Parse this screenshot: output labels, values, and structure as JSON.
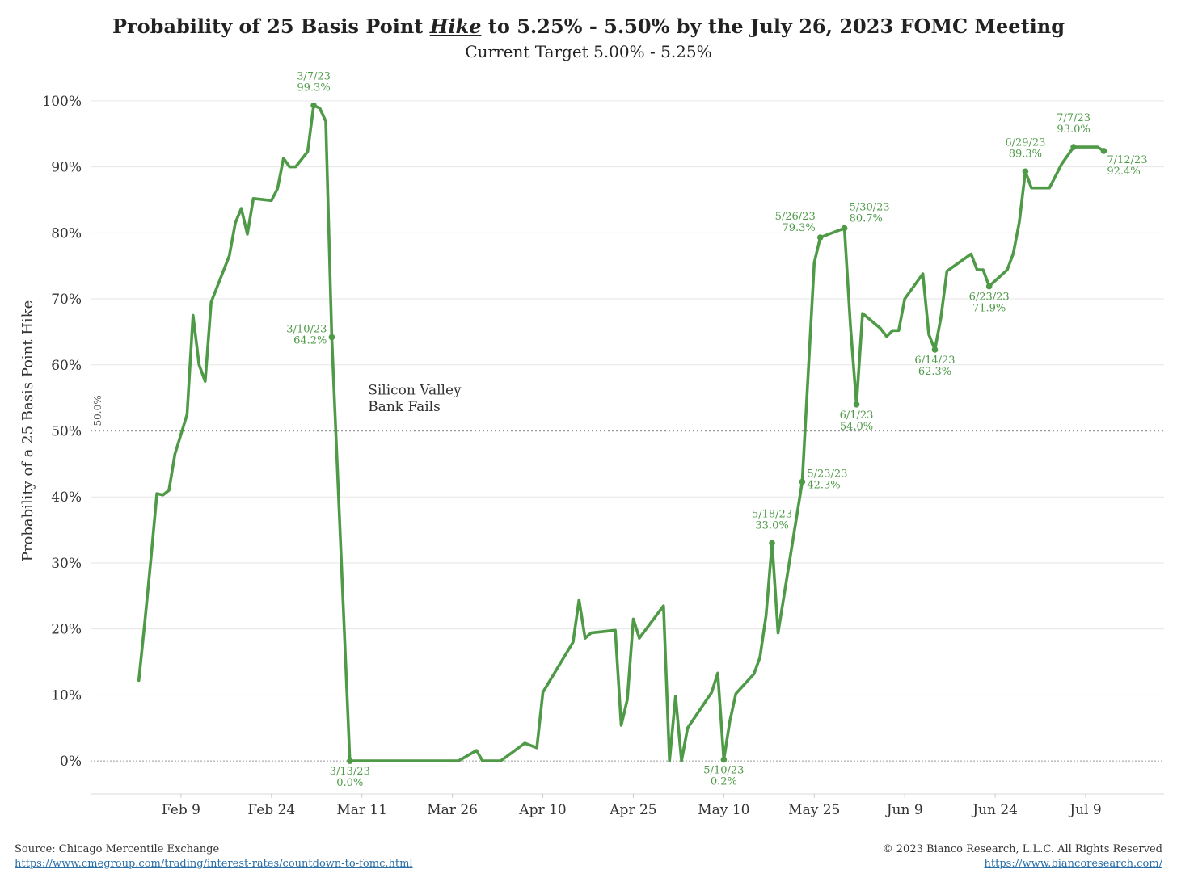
{
  "title": {
    "prefix": "Probability of 25 Basis Point ",
    "emphasis": "Hike",
    "suffix": " to 5.25% - 5.50% by the July 26, 2023 FOMC Meeting"
  },
  "subtitle": "Current Target 5.00% - 5.25%",
  "footer": {
    "source": "Source: Chicago Mercentile Exchange",
    "source_url": "https://www.cmegroup.com/trading/interest-rates/countdown-to-fomc.html",
    "copyright": "© 2023 Bianco Research, L.L.C. All Rights Reserved",
    "site_url": "https://www.biancoresearch.com/"
  },
  "colors": {
    "line": "#4e9a47",
    "grid": "#e6e6e6",
    "reference": "#999999",
    "text": "#333333"
  },
  "chart_data": {
    "type": "line",
    "title": "Probability of 25 Basis Point Hike to 5.25% - 5.50% by the July 26, 2023 FOMC Meeting",
    "subtitle": "Current Target 5.00% - 5.25%",
    "xlabel": "",
    "ylabel": "Probability of a 25 Basis Point Hike",
    "x_type": "date",
    "xlim": [
      "2023-01-25",
      "2023-07-22"
    ],
    "ylim": [
      -5,
      105
    ],
    "y_ticks": [
      0,
      10,
      20,
      30,
      40,
      50,
      60,
      70,
      80,
      90,
      100
    ],
    "y_tick_labels": [
      "0%",
      "10%",
      "20%",
      "30%",
      "40%",
      "50%",
      "60%",
      "70%",
      "80%",
      "90%",
      "100%"
    ],
    "x_ticks": [
      "2023-02-09",
      "2023-02-24",
      "2023-03-11",
      "2023-03-26",
      "2023-04-10",
      "2023-04-25",
      "2023-05-10",
      "2023-05-25",
      "2023-06-09",
      "2023-06-24",
      "2023-07-09"
    ],
    "x_tick_labels": [
      "Feb 9",
      "Feb 24",
      "Mar 11",
      "Mar 26",
      "Apr 10",
      "Apr 25",
      "May 10",
      "May 25",
      "Jun 9",
      "Jun 24",
      "Jul 9"
    ],
    "grid": true,
    "reference_lines": [
      {
        "y": 50,
        "label": "50.0%",
        "style": "dotted"
      },
      {
        "y": 0,
        "label": "",
        "style": "dotted"
      }
    ],
    "series": [
      {
        "name": "",
        "color": "#4e9a47",
        "points": [
          [
            "2023-02-02",
            12.2
          ],
          [
            "2023-02-03",
            21.0
          ],
          [
            "2023-02-04",
            30.5
          ],
          [
            "2023-02-05",
            40.5
          ],
          [
            "2023-02-06",
            40.3
          ],
          [
            "2023-02-07",
            41.0
          ],
          [
            "2023-02-08",
            46.5
          ],
          [
            "2023-02-09",
            49.5
          ],
          [
            "2023-02-10",
            52.5
          ],
          [
            "2023-02-11",
            67.5
          ],
          [
            "2023-02-12",
            60.0
          ],
          [
            "2023-02-13",
            57.5
          ],
          [
            "2023-02-14",
            69.5
          ],
          [
            "2023-02-17",
            76.5
          ],
          [
            "2023-02-18",
            81.5
          ],
          [
            "2023-02-19",
            83.7
          ],
          [
            "2023-02-20",
            79.8
          ],
          [
            "2023-02-21",
            85.2
          ],
          [
            "2023-02-24",
            84.9
          ],
          [
            "2023-02-25",
            86.7
          ],
          [
            "2023-02-26",
            91.3
          ],
          [
            "2023-02-27",
            90.0
          ],
          [
            "2023-02-28",
            90.0
          ],
          [
            "2023-03-02",
            92.3
          ],
          [
            "2023-03-03",
            99.3
          ],
          [
            "2023-03-04",
            98.9
          ],
          [
            "2023-03-05",
            96.9
          ],
          [
            "2023-03-06",
            64.2
          ],
          [
            "2023-03-09",
            0.0
          ],
          [
            "2023-03-27",
            0.0
          ],
          [
            "2023-03-30",
            1.6
          ],
          [
            "2023-03-31",
            0.0
          ],
          [
            "2023-04-03",
            0.0
          ],
          [
            "2023-04-07",
            2.7
          ],
          [
            "2023-04-09",
            2.0
          ],
          [
            "2023-04-10",
            10.4
          ],
          [
            "2023-04-15",
            18.0
          ],
          [
            "2023-04-16",
            24.4
          ],
          [
            "2023-04-17",
            18.6
          ],
          [
            "2023-04-18",
            19.4
          ],
          [
            "2023-04-22",
            19.8
          ],
          [
            "2023-04-23",
            5.4
          ],
          [
            "2023-04-24",
            9.3
          ],
          [
            "2023-04-25",
            21.5
          ],
          [
            "2023-04-26",
            18.6
          ],
          [
            "2023-04-30",
            23.5
          ],
          [
            "2023-05-01",
            0.0
          ],
          [
            "2023-05-02",
            9.8
          ],
          [
            "2023-05-03",
            0.0
          ],
          [
            "2023-05-04",
            5.0
          ],
          [
            "2023-05-08",
            10.4
          ],
          [
            "2023-05-09",
            13.3
          ],
          [
            "2023-05-10",
            0.2
          ],
          [
            "2023-05-11",
            6.0
          ],
          [
            "2023-05-12",
            10.2
          ],
          [
            "2023-05-15",
            13.2
          ],
          [
            "2023-05-16",
            15.7
          ],
          [
            "2023-05-17",
            22.0
          ],
          [
            "2023-05-18",
            33.0
          ],
          [
            "2023-05-19",
            19.4
          ],
          [
            "2023-05-23",
            42.3
          ],
          [
            "2023-05-25",
            75.5
          ],
          [
            "2023-05-26",
            79.3
          ],
          [
            "2023-05-30",
            80.7
          ],
          [
            "2023-05-31",
            66.0
          ],
          [
            "2023-06-01",
            54.0
          ],
          [
            "2023-06-02",
            67.8
          ],
          [
            "2023-06-05",
            65.5
          ],
          [
            "2023-06-06",
            64.3
          ],
          [
            "2023-06-07",
            65.2
          ],
          [
            "2023-06-08",
            65.2
          ],
          [
            "2023-06-09",
            70.0
          ],
          [
            "2023-06-12",
            73.8
          ],
          [
            "2023-06-13",
            64.6
          ],
          [
            "2023-06-14",
            62.3
          ],
          [
            "2023-06-15",
            67.2
          ],
          [
            "2023-06-16",
            74.2
          ],
          [
            "2023-06-20",
            76.8
          ],
          [
            "2023-06-21",
            74.4
          ],
          [
            "2023-06-22",
            74.4
          ],
          [
            "2023-06-23",
            71.9
          ],
          [
            "2023-06-26",
            74.4
          ],
          [
            "2023-06-27",
            76.9
          ],
          [
            "2023-06-28",
            81.6
          ],
          [
            "2023-06-29",
            89.3
          ],
          [
            "2023-06-30",
            86.8
          ],
          [
            "2023-07-03",
            86.8
          ],
          [
            "2023-07-05",
            90.4
          ],
          [
            "2023-07-07",
            93.0
          ],
          [
            "2023-07-11",
            93.0
          ],
          [
            "2023-07-12",
            92.4
          ]
        ]
      }
    ],
    "annotations": [
      {
        "x": "2023-03-03",
        "y": 99.3,
        "date": "3/7/23",
        "value": "99.3%",
        "pos": "above"
      },
      {
        "x": "2023-03-06",
        "y": 64.2,
        "date": "3/10/23",
        "value": "64.2%",
        "pos": "left"
      },
      {
        "x": "2023-03-09",
        "y": 0.0,
        "date": "3/13/23",
        "value": "0.0%",
        "pos": "below"
      },
      {
        "x": "2023-05-10",
        "y": 0.2,
        "date": "5/10/23",
        "value": "0.2%",
        "pos": "below"
      },
      {
        "x": "2023-05-18",
        "y": 33.0,
        "date": "5/18/23",
        "value": "33.0%",
        "pos": "above"
      },
      {
        "x": "2023-05-23",
        "y": 42.3,
        "date": "5/23/23",
        "value": "42.3%",
        "pos": "right"
      },
      {
        "x": "2023-05-26",
        "y": 79.3,
        "date": "5/26/23",
        "value": "79.3%",
        "pos": "above-left"
      },
      {
        "x": "2023-05-30",
        "y": 80.7,
        "date": "5/30/23",
        "value": "80.7%",
        "pos": "above-right"
      },
      {
        "x": "2023-06-01",
        "y": 54.0,
        "date": "6/1/23",
        "value": "54.0%",
        "pos": "below"
      },
      {
        "x": "2023-06-14",
        "y": 62.3,
        "date": "6/14/23",
        "value": "62.3%",
        "pos": "below"
      },
      {
        "x": "2023-06-23",
        "y": 71.9,
        "date": "6/23/23",
        "value": "71.9%",
        "pos": "below"
      },
      {
        "x": "2023-06-29",
        "y": 89.3,
        "date": "6/29/23",
        "value": "89.3%",
        "pos": "above"
      },
      {
        "x": "2023-07-07",
        "y": 93.0,
        "date": "7/7/23",
        "value": "93.0%",
        "pos": "above"
      },
      {
        "x": "2023-07-12",
        "y": 92.4,
        "date": "7/12/23",
        "value": "92.4%",
        "pos": "below-right"
      }
    ],
    "text_annotations": [
      {
        "text": "Silicon Valley",
        "x": "2023-03-12",
        "y": 55.5
      },
      {
        "text": "Bank Fails",
        "x": "2023-03-12",
        "y": 53.0
      }
    ]
  }
}
